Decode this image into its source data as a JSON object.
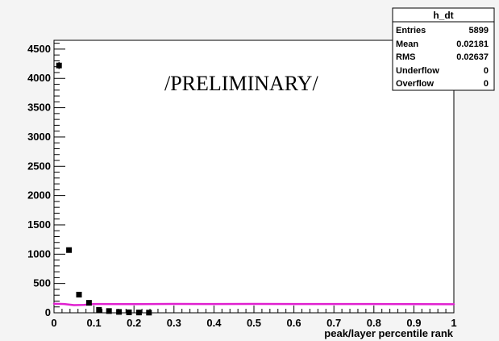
{
  "chart_data": {
    "type": "scatter",
    "title": "",
    "xlabel": "peak/layer percentile rank",
    "ylabel": "",
    "xlim": [
      0,
      1
    ],
    "ylim": [
      0,
      4650
    ],
    "grid": false,
    "x_ticks": [
      0,
      0.1,
      0.2,
      0.3,
      0.4,
      0.5,
      0.6,
      0.7,
      0.8,
      0.9,
      1
    ],
    "y_ticks": [
      0,
      500,
      1000,
      1500,
      2000,
      2500,
      3000,
      3500,
      4000,
      4500
    ],
    "x_tick_labels": [
      "0",
      "0.1",
      "0.2",
      "0.3",
      "0.4",
      "0.5",
      "0.6",
      "0.7",
      "0.8",
      "0.9",
      "1"
    ],
    "y_tick_labels": [
      "0",
      "500",
      "1000",
      "1500",
      "2000",
      "2500",
      "3000",
      "3500",
      "4000",
      "4500"
    ],
    "annotation": "/PRELIMINARY/",
    "series": [
      {
        "marker": "square",
        "color": "#000000",
        "x": [
          0.0125,
          0.0375,
          0.0625,
          0.0875,
          0.1125,
          0.1375,
          0.1625,
          0.1875,
          0.2125,
          0.2375
        ],
        "y": [
          4220,
          1070,
          310,
          170,
          50,
          30,
          15,
          8,
          5,
          3
        ],
        "y_err": [
          60,
          33,
          18,
          13,
          7,
          5,
          4,
          3,
          2,
          2
        ]
      },
      {
        "marker": "line",
        "color": "#e020d0",
        "x": [
          0,
          0.025,
          0.05,
          0.075,
          0.1,
          0.2,
          0.3,
          0.4,
          0.5,
          0.6,
          0.7,
          0.8,
          0.9,
          1.0
        ],
        "y": [
          155,
          150,
          130,
          135,
          150,
          148,
          152,
          149,
          151,
          150,
          149,
          150,
          148,
          147
        ]
      }
    ]
  },
  "stats_box": {
    "title": "h_dt",
    "rows": [
      {
        "label": "Entries",
        "value": "5899"
      },
      {
        "label": "Mean",
        "value": "0.02181"
      },
      {
        "label": "RMS",
        "value": "0.02637"
      },
      {
        "label": "Underflow",
        "value": "0"
      },
      {
        "label": "Overflow",
        "value": "0"
      }
    ]
  }
}
